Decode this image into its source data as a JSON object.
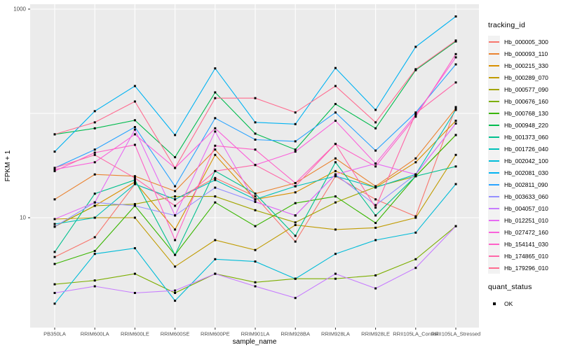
{
  "figure": {
    "background": "#FFFFFF",
    "panel_background": "#EBEBEB",
    "gridline_color": "#FFFFFF",
    "axis_text_color": "#4D4D4D",
    "axis_title_color": "#000000",
    "point_color": "#000000"
  },
  "legend": {
    "tracking_title": "tracking_id",
    "quant_title": "quant_status",
    "quant_items": [
      {
        "label": "OK",
        "shape": "black-square"
      }
    ],
    "key_background": "#F2F2F2"
  },
  "chart_data": {
    "type": "line",
    "title": "",
    "xlabel": "sample_name",
    "ylabel": "FPKM + 1",
    "y_scale": "log10",
    "ylim": [
      0.85,
      1150
    ],
    "grid": true,
    "legend_position": "right",
    "point_shape": "black-square",
    "y_ticks": [
      {
        "label": "1000",
        "value": 1000
      },
      {
        "label": "10",
        "value": 10
      }
    ],
    "y_gridlines": [
      10,
      100,
      1000
    ],
    "categories": [
      "PB350LA",
      "RRIM600LA",
      "RRIM600LE",
      "RRIM600SE",
      "RRIM600PE",
      "RRIM901LA",
      "RRIM928BA",
      "RRIM928LA",
      "RRIM928LE",
      "RRII105LA_Control",
      "RRII105LA_Stressed"
    ],
    "series": [
      {
        "name": "Hb_000005_300",
        "color": "#F8766D",
        "values": [
          4.2,
          6.5,
          21,
          15,
          24,
          16,
          5.9,
          25,
          15,
          10.3,
          115
        ]
      },
      {
        "name": "Hb_000093_110",
        "color": "#EA8331",
        "values": [
          15,
          26,
          25,
          18,
          45,
          17,
          21.5,
          37,
          20,
          37,
          112
        ]
      },
      {
        "name": "Hb_000215_330",
        "color": "#D89000",
        "values": [
          8.2,
          13,
          22,
          7.7,
          40,
          15,
          17.5,
          28,
          19.5,
          34,
          85
        ]
      },
      {
        "name": "Hb_000289_070",
        "color": "#C09B00",
        "values": [
          9.7,
          10,
          10,
          3.4,
          6.1,
          4.9,
          8.5,
          7.7,
          8.0,
          10,
          40
        ]
      },
      {
        "name": "Hb_000577_090",
        "color": "#A3A500",
        "values": [
          8.2,
          13,
          13.5,
          16,
          16,
          11.8,
          9.0,
          14,
          19.7,
          25,
          62
        ]
      },
      {
        "name": "Hb_000676_160",
        "color": "#7CAE00",
        "values": [
          2.3,
          2.5,
          2.9,
          1.9,
          2.9,
          2.4,
          2.6,
          2.6,
          2.8,
          4.0,
          8.3
        ]
      },
      {
        "name": "Hb_000768_130",
        "color": "#39B600",
        "values": [
          3.6,
          4.8,
          13,
          4.4,
          14,
          8.3,
          13.8,
          16,
          8.9,
          25,
          62
        ]
      },
      {
        "name": "Hb_000948_220",
        "color": "#00BB4E",
        "values": [
          63,
          72,
          86,
          38,
          159,
          64,
          45,
          123,
          72,
          260,
          490
        ]
      },
      {
        "name": "Hb_001373_060",
        "color": "#00C08E",
        "values": [
          4.7,
          17,
          23,
          4.4,
          28,
          17,
          6.7,
          34,
          10.5,
          25,
          31
        ]
      },
      {
        "name": "Hb_001726_040",
        "color": "#00C0B8",
        "values": [
          8.7,
          10,
          21,
          15,
          23,
          15,
          20,
          25,
          19.5,
          26,
          108
        ]
      },
      {
        "name": "Hb_002042_100",
        "color": "#00BCD8",
        "values": [
          1.5,
          4.5,
          5.1,
          1.6,
          4.0,
          3.8,
          2.6,
          4.5,
          6.1,
          7.2,
          21
        ]
      },
      {
        "name": "Hb_002081_030",
        "color": "#00B3F2",
        "values": [
          43,
          105,
          183,
          62,
          270,
          82,
          79,
          272,
          108,
          435,
          850
        ]
      },
      {
        "name": "Hb_002811_090",
        "color": "#29A3FF",
        "values": [
          30,
          45,
          74,
          20,
          90,
          56,
          54,
          102,
          44,
          102,
          295
        ]
      },
      {
        "name": "Hb_003633_060",
        "color": "#9590FF",
        "values": [
          8.2,
          14,
          13,
          10.5,
          19.4,
          14.2,
          10.5,
          26,
          13.2,
          26,
          80
        ]
      },
      {
        "name": "Hb_004057_010",
        "color": "#C77CFF",
        "values": [
          1.9,
          2.2,
          1.9,
          2.0,
          2.9,
          2.2,
          1.7,
          2.9,
          2.1,
          3.3,
          8.3
        ]
      },
      {
        "name": "Hb_012251_010",
        "color": "#E76BF3",
        "values": [
          9.7,
          14,
          70,
          10.5,
          67,
          14.2,
          10.5,
          26,
          33,
          26,
          80
        ]
      },
      {
        "name": "Hb_027472_160",
        "color": "#FA62DB",
        "values": [
          29,
          34,
          63,
          30,
          72,
          32,
          43,
          85,
          33,
          97,
          345
        ]
      },
      {
        "name": "Hb_154141_030",
        "color": "#FF61C7",
        "values": [
          28,
          42,
          50,
          6.1,
          49,
          45,
          21.5,
          51,
          31,
          93,
          370
        ]
      },
      {
        "name": "Hb_174865_010",
        "color": "#FF67A8",
        "values": [
          30,
          40,
          24,
          13,
          28,
          32,
          20,
          51,
          12.5,
          100,
          198
        ]
      },
      {
        "name": "Hb_179296_010",
        "color": "#FF6C90",
        "values": [
          63,
          82,
          130,
          30,
          140,
          140,
          102,
          183,
          82,
          265,
          500
        ]
      }
    ]
  }
}
